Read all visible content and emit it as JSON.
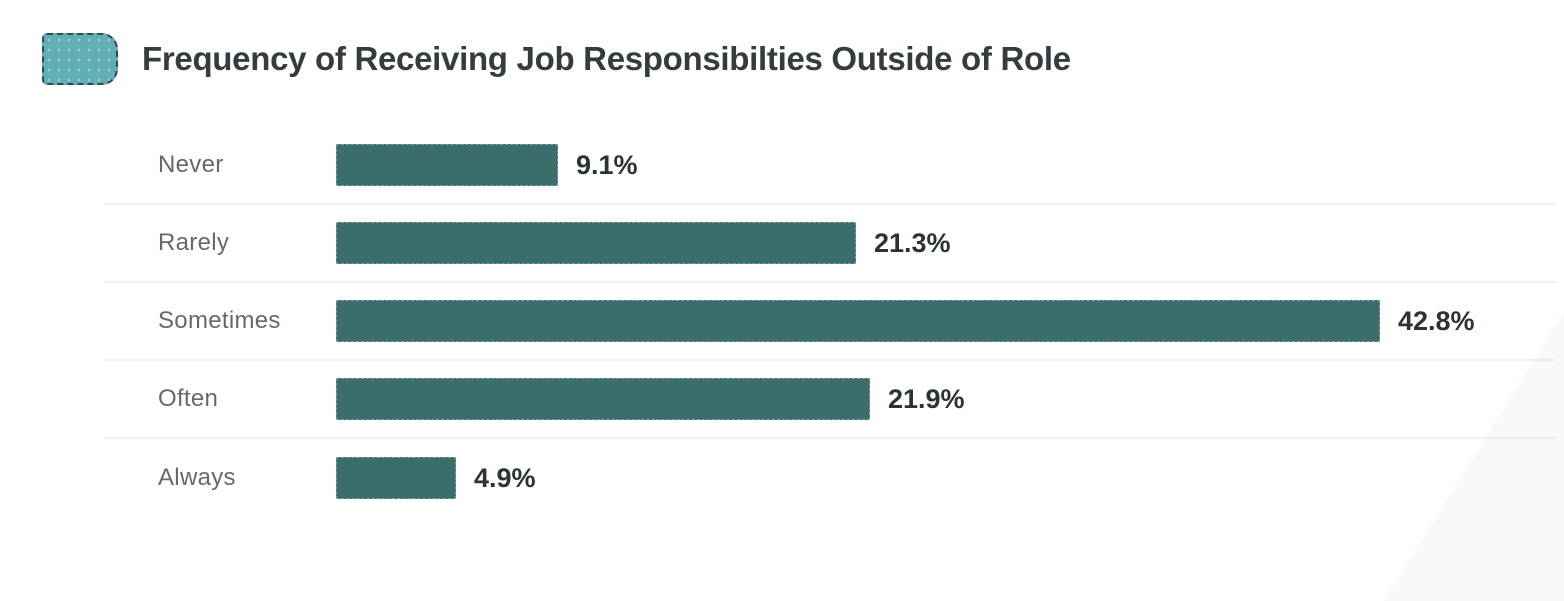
{
  "header": {
    "title": "Frequency of Receiving Job Responsibilties Outside of Role",
    "swatch_icon": "rounded-teal-swatch",
    "swatch_fill": "#61aeb4",
    "swatch_border": "#35494c"
  },
  "chart_data": {
    "type": "bar",
    "orientation": "horizontal",
    "title": "Frequency of Receiving Job Responsibilties Outside of Role",
    "categories": [
      "Never",
      "Rarely",
      "Sometimes",
      "Often",
      "Always"
    ],
    "values": [
      9.1,
      21.3,
      42.8,
      21.9,
      4.9
    ],
    "value_labels": [
      "9.1%",
      "21.3%",
      "42.8%",
      "21.9%",
      "4.9%"
    ],
    "unit": "%",
    "xlabel": "",
    "ylabel": "",
    "xlim": [
      0,
      45
    ],
    "grid": "light row separators between categories",
    "legend": "none",
    "bar_color": "#3c6d6d",
    "category_label_color": "#636a6c",
    "value_label_color": "#2c3335",
    "separator_color": "#eef1f1"
  }
}
